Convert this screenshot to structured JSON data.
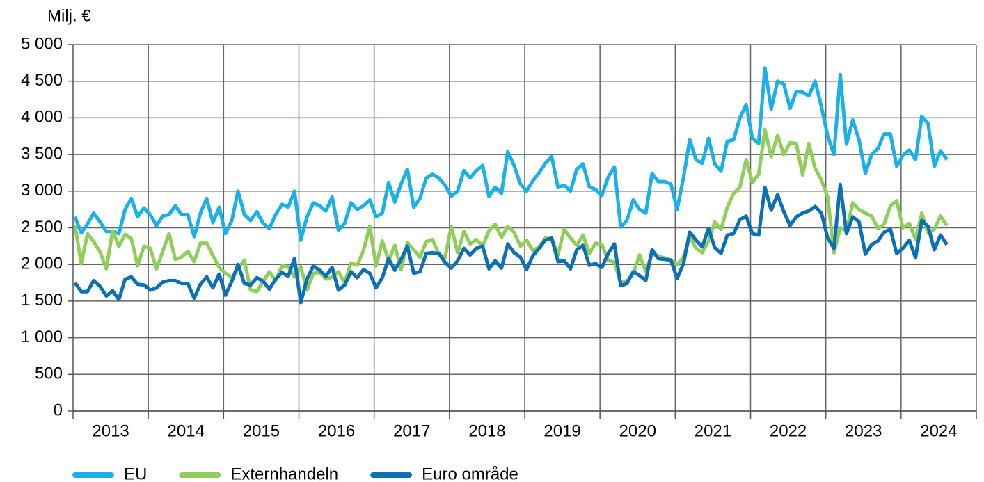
{
  "chart_data": {
    "type": "line",
    "y_axis_label": "Milj. €",
    "categories": [
      null,
      null,
      null,
      null,
      null,
      null,
      "2013",
      null,
      null,
      null,
      null,
      null,
      null,
      null,
      null,
      null,
      null,
      null,
      "2014",
      null,
      null,
      null,
      null,
      null,
      null,
      null,
      null,
      null,
      null,
      null,
      "2015",
      null,
      null,
      null,
      null,
      null,
      null,
      null,
      null,
      null,
      null,
      null,
      "2016",
      null,
      null,
      null,
      null,
      null,
      null,
      null,
      null,
      null,
      null,
      null,
      "2017",
      null,
      null,
      null,
      null,
      null,
      null,
      null,
      null,
      null,
      null,
      null,
      "2018",
      null,
      null,
      null,
      null,
      null,
      null,
      null,
      null,
      null,
      null,
      null,
      "2019",
      null,
      null,
      null,
      null,
      null,
      null,
      null,
      null,
      null,
      null,
      null,
      "2020",
      null,
      null,
      null,
      null,
      null,
      null,
      null,
      null,
      null,
      null,
      null,
      "2021",
      null,
      null,
      null,
      null,
      null,
      null,
      null,
      null,
      null,
      null,
      null,
      "2022",
      null,
      null,
      null,
      null,
      null,
      null,
      null,
      null,
      null,
      null,
      null,
      "2023",
      null,
      null,
      null,
      null,
      null,
      null,
      null,
      null,
      null,
      null,
      null,
      "2024",
      null
    ],
    "ylim": [
      0,
      5000
    ],
    "yticks": [
      {
        "value": 0,
        "label": "0"
      },
      {
        "value": 500,
        "label": "500"
      },
      {
        "value": 1000,
        "label": "1 000"
      },
      {
        "value": 1500,
        "label": "1 500"
      },
      {
        "value": 2000,
        "label": "2 000"
      },
      {
        "value": 2500,
        "label": "2 500"
      },
      {
        "value": 3000,
        "label": "3 000"
      },
      {
        "value": 3500,
        "label": "3 500"
      },
      {
        "value": 4000,
        "label": "4 000"
      },
      {
        "value": 4500,
        "label": "4 500"
      },
      {
        "value": 5000,
        "label": "5 000"
      }
    ],
    "grid": true,
    "legend": "bottom",
    "series": [
      {
        "name": "EU",
        "color": "#1cb0e8",
        "values": [
          2650,
          2430,
          2550,
          2700,
          2580,
          2450,
          2450,
          2420,
          2750,
          2900,
          2650,
          2770,
          2680,
          2530,
          2660,
          2680,
          2800,
          2680,
          2680,
          2380,
          2700,
          2900,
          2570,
          2780,
          2420,
          2600,
          3000,
          2680,
          2600,
          2720,
          2560,
          2490,
          2680,
          2820,
          2780,
          3000,
          2330,
          2650,
          2840,
          2800,
          2730,
          2920,
          2470,
          2560,
          2840,
          2750,
          2800,
          2880,
          2650,
          2700,
          3120,
          2850,
          3100,
          3300,
          2780,
          2900,
          3180,
          3230,
          3180,
          3080,
          2930,
          3000,
          3280,
          3180,
          3280,
          3350,
          2930,
          3050,
          2970,
          3540,
          3350,
          3100,
          3000,
          3140,
          3250,
          3380,
          3470,
          3050,
          3080,
          3000,
          3300,
          3370,
          3060,
          3020,
          2940,
          3190,
          3330,
          2510,
          2600,
          2880,
          2750,
          2700,
          3240,
          3130,
          3130,
          3100,
          2750,
          3180,
          3700,
          3430,
          3380,
          3720,
          3370,
          3270,
          3680,
          3700,
          4000,
          4180,
          3720,
          3650,
          4680,
          4120,
          4500,
          4460,
          4130,
          4360,
          4350,
          4300,
          4500,
          4150,
          3750,
          3500,
          4590,
          3640,
          3970,
          3700,
          3240,
          3500,
          3580,
          3780,
          3780,
          3340,
          3490,
          3560,
          3430,
          4020,
          3920,
          3340,
          3550,
          3430
        ]
      },
      {
        "name": "Externhandeln",
        "color": "#8fce5a",
        "values": [
          2540,
          2010,
          2420,
          2310,
          2170,
          1940,
          2460,
          2250,
          2410,
          2350,
          1980,
          2250,
          2220,
          1940,
          2180,
          2420,
          2070,
          2100,
          2180,
          2040,
          2290,
          2290,
          2120,
          1960,
          1880,
          1820,
          1940,
          2060,
          1650,
          1630,
          1770,
          1900,
          1780,
          1980,
          1970,
          1830,
          1970,
          1650,
          1880,
          1890,
          1800,
          1830,
          1900,
          1750,
          2020,
          1990,
          2190,
          2520,
          1980,
          2320,
          2050,
          2260,
          1930,
          2300,
          2200,
          2100,
          2310,
          2340,
          2140,
          2090,
          2520,
          2160,
          2450,
          2280,
          2340,
          2250,
          2460,
          2550,
          2370,
          2520,
          2440,
          2250,
          2330,
          2190,
          2240,
          2360,
          2350,
          2130,
          2480,
          2360,
          2260,
          2400,
          2150,
          2290,
          2270,
          2060,
          2030,
          1750,
          1780,
          1870,
          2130,
          1900,
          2150,
          2110,
          2090,
          2060,
          2000,
          2100,
          2380,
          2220,
          2160,
          2320,
          2580,
          2480,
          2780,
          2970,
          3050,
          3430,
          3120,
          3230,
          3840,
          3470,
          3760,
          3500,
          3660,
          3650,
          3220,
          3650,
          3310,
          3150,
          2920,
          2160,
          2500,
          2460,
          2840,
          2750,
          2700,
          2660,
          2490,
          2550,
          2800,
          2870,
          2500,
          2560,
          2340,
          2700,
          2430,
          2480,
          2660,
          2530
        ]
      },
      {
        "name": "Euro område",
        "color": "#0d6fb5",
        "values": [
          1750,
          1630,
          1630,
          1780,
          1700,
          1570,
          1640,
          1520,
          1800,
          1830,
          1730,
          1720,
          1650,
          1680,
          1760,
          1780,
          1780,
          1740,
          1740,
          1540,
          1730,
          1830,
          1680,
          1870,
          1580,
          1770,
          2000,
          1740,
          1720,
          1820,
          1770,
          1660,
          1800,
          1890,
          1840,
          2080,
          1480,
          1800,
          1980,
          1920,
          1840,
          1960,
          1650,
          1720,
          1900,
          1820,
          1930,
          1880,
          1680,
          1820,
          2080,
          1920,
          2070,
          2250,
          1880,
          1900,
          2150,
          2160,
          2150,
          2030,
          1950,
          2050,
          2220,
          2130,
          2220,
          2250,
          1940,
          2050,
          1950,
          2280,
          2160,
          2100,
          1930,
          2120,
          2220,
          2330,
          2360,
          2040,
          2050,
          1940,
          2200,
          2260,
          1990,
          2010,
          1960,
          2150,
          2280,
          1710,
          1740,
          1900,
          1850,
          1780,
          2200,
          2080,
          2070,
          2060,
          1810,
          2010,
          2440,
          2330,
          2240,
          2490,
          2230,
          2150,
          2400,
          2420,
          2610,
          2660,
          2420,
          2400,
          3050,
          2740,
          2950,
          2720,
          2530,
          2650,
          2700,
          2730,
          2790,
          2700,
          2360,
          2220,
          3090,
          2420,
          2650,
          2580,
          2140,
          2270,
          2320,
          2440,
          2480,
          2150,
          2220,
          2330,
          2090,
          2600,
          2520,
          2200,
          2400,
          2270
        ]
      }
    ]
  }
}
